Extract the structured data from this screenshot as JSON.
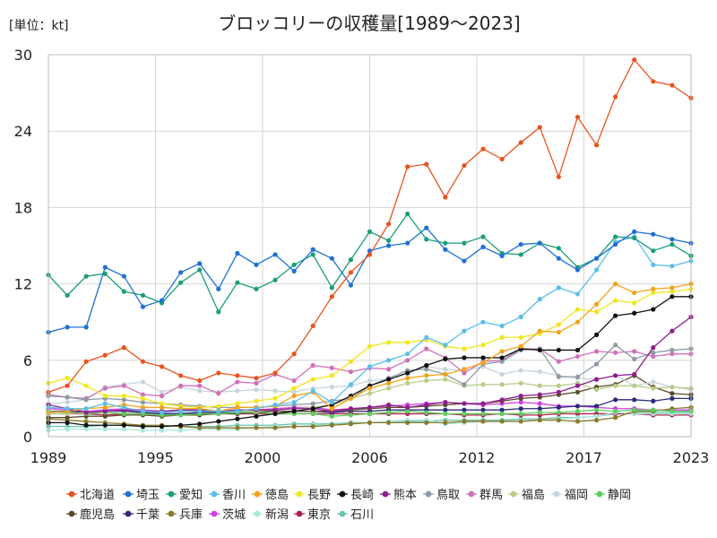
{
  "chart_data": {
    "type": "line",
    "title": "ブロッコリーの収穫量[1989〜2023]",
    "unit_label": "[単位：kt]",
    "xlim": [
      1989,
      2023
    ],
    "ylim": [
      0,
      30
    ],
    "y_ticks": [
      0,
      6,
      12,
      18,
      24,
      30
    ],
    "y_tick_labels": [
      "0",
      "6",
      "12",
      "18",
      "24",
      "30"
    ],
    "x_tick_labels": [
      "1989",
      "1995",
      "2000",
      "2006",
      "2012",
      "2017",
      "2023"
    ],
    "grid": true,
    "legend_position": "bottom",
    "x": [
      1989,
      1990,
      1991,
      1992,
      1993,
      1994,
      1995,
      1996,
      1997,
      1998,
      1999,
      2000,
      2001,
      2002,
      2003,
      2004,
      2005,
      2006,
      2007,
      2008,
      2009,
      2010,
      2011,
      2012,
      2013,
      2014,
      2015,
      2016,
      2017,
      2018,
      2019,
      2020,
      2021,
      2022,
      2023
    ],
    "series": [
      {
        "name": "北海道",
        "color": "#e8531f",
        "values": [
          3.5,
          4.0,
          5.9,
          6.4,
          7.0,
          5.9,
          5.5,
          4.8,
          4.4,
          5.0,
          4.8,
          4.6,
          5.0,
          6.5,
          8.7,
          11.0,
          12.9,
          14.3,
          16.7,
          21.2,
          21.4,
          18.8,
          21.3,
          22.6,
          21.8,
          23.1,
          24.3,
          20.4,
          25.1,
          22.9,
          26.7,
          29.6,
          27.9,
          27.6,
          26.6
        ]
      },
      {
        "name": "埼玉",
        "color": "#1f6fd6",
        "values": [
          8.2,
          8.6,
          8.6,
          13.3,
          12.6,
          10.2,
          10.7,
          12.9,
          13.6,
          11.6,
          14.4,
          13.5,
          14.3,
          13.0,
          14.7,
          14.0,
          11.9,
          14.6,
          15.0,
          15.2,
          16.4,
          14.7,
          13.8,
          14.9,
          14.2,
          15.1,
          15.2,
          14.0,
          13.1,
          14.0,
          15.1,
          16.1,
          15.9,
          15.5,
          15.2
        ]
      },
      {
        "name": "愛知",
        "color": "#1a9e77",
        "values": [
          12.7,
          11.1,
          12.6,
          12.8,
          11.4,
          11.1,
          10.5,
          12.1,
          13.1,
          9.8,
          12.1,
          11.6,
          12.3,
          13.5,
          14.3,
          11.7,
          13.9,
          16.1,
          15.4,
          17.5,
          15.5,
          15.2,
          15.2,
          15.7,
          14.4,
          14.3,
          15.2,
          14.8,
          13.3,
          14.0,
          15.7,
          15.6,
          14.6,
          15.1,
          14.2
        ]
      },
      {
        "name": "香川",
        "color": "#5bbfe8",
        "values": [
          2.3,
          2.2,
          2.2,
          2.6,
          2.3,
          2.0,
          1.9,
          2.0,
          2.0,
          2.0,
          2.0,
          2.2,
          2.5,
          2.7,
          3.6,
          2.7,
          4.1,
          5.5,
          6.0,
          6.5,
          7.8,
          7.2,
          8.3,
          9.0,
          8.7,
          9.4,
          10.8,
          11.7,
          11.2,
          13.1,
          15.3,
          15.7,
          13.5,
          13.4,
          13.8
        ]
      },
      {
        "name": "徳島",
        "color": "#f2a31b",
        "values": [
          1.9,
          2.0,
          2.2,
          2.3,
          2.5,
          2.3,
          2.3,
          2.2,
          2.2,
          2.0,
          2.3,
          2.3,
          2.4,
          3.2,
          3.5,
          2.2,
          3.0,
          3.8,
          4.2,
          4.6,
          4.8,
          4.9,
          5.3,
          5.8,
          6.7,
          7.1,
          8.3,
          8.2,
          9.0,
          10.4,
          12.0,
          11.3,
          11.6,
          11.7,
          12.0
        ]
      },
      {
        "name": "長野",
        "color": "#f3e51c",
        "values": [
          4.2,
          4.6,
          4.0,
          3.2,
          3.2,
          3.0,
          2.6,
          2.4,
          2.3,
          2.4,
          2.6,
          2.8,
          3.0,
          3.8,
          4.5,
          4.8,
          5.9,
          7.1,
          7.4,
          7.4,
          7.6,
          7.1,
          6.9,
          7.2,
          7.8,
          7.8,
          8.1,
          8.8,
          10.0,
          9.8,
          10.7,
          10.5,
          11.3,
          11.4,
          11.6
        ]
      },
      {
        "name": "長崎",
        "color": "#111111",
        "values": [
          1.1,
          1.1,
          0.9,
          0.9,
          0.9,
          0.8,
          0.8,
          0.9,
          1.0,
          1.2,
          1.4,
          1.6,
          1.8,
          2.0,
          2.2,
          2.5,
          3.2,
          4.0,
          4.5,
          5.0,
          5.6,
          6.1,
          6.2,
          6.2,
          6.2,
          6.9,
          6.8,
          6.8,
          6.8,
          8.0,
          9.5,
          9.7,
          10.0,
          11.0,
          11.0
        ]
      },
      {
        "name": "熊本",
        "color": "#8e1f8e",
        "values": [
          2.5,
          2.2,
          1.9,
          2.0,
          2.1,
          2.0,
          2.0,
          2.1,
          2.1,
          2.0,
          2.1,
          2.1,
          2.1,
          2.2,
          2.2,
          2.0,
          2.2,
          2.3,
          2.5,
          2.3,
          2.5,
          2.7,
          2.6,
          2.6,
          2.9,
          3.2,
          3.3,
          3.5,
          4.0,
          4.5,
          4.8,
          4.9,
          7.0,
          8.3,
          9.4
        ]
      },
      {
        "name": "鳥取",
        "color": "#8e9aa6",
        "values": [
          3.2,
          3.1,
          2.9,
          3.0,
          2.9,
          2.7,
          2.6,
          2.5,
          2.4,
          2.3,
          2.3,
          2.3,
          2.4,
          2.5,
          2.6,
          2.8,
          3.0,
          4.0,
          4.6,
          5.2,
          5.3,
          4.9,
          4.1,
          5.7,
          5.9,
          6.8,
          6.9,
          4.7,
          4.7,
          5.7,
          7.2,
          6.1,
          6.6,
          6.8,
          6.9
        ]
      },
      {
        "name": "群馬",
        "color": "#d070b8",
        "values": [
          3.3,
          3.1,
          3.0,
          3.8,
          4.0,
          3.3,
          3.2,
          4.0,
          4.0,
          3.4,
          4.3,
          4.2,
          4.9,
          4.4,
          5.6,
          5.4,
          5.1,
          5.4,
          5.3,
          6.0,
          6.9,
          6.2,
          5.0,
          5.9,
          6.0,
          6.9,
          6.9,
          5.9,
          6.3,
          6.7,
          6.6,
          6.7,
          6.3,
          6.5,
          6.5
        ]
      },
      {
        "name": "福島",
        "color": "#b8cc8a",
        "values": [
          1.8,
          1.8,
          1.9,
          2.0,
          2.1,
          2.0,
          2.0,
          2.1,
          2.1,
          2.0,
          2.0,
          2.0,
          2.1,
          2.2,
          2.3,
          2.5,
          3.0,
          3.4,
          3.8,
          4.2,
          4.4,
          4.5,
          4.0,
          4.1,
          4.1,
          4.2,
          4.0,
          4.0,
          4.2,
          3.7,
          4.0,
          4.0,
          3.8,
          3.9,
          3.8
        ]
      },
      {
        "name": "福岡",
        "color": "#c8d4dc",
        "values": [
          2.6,
          2.7,
          2.9,
          3.9,
          4.1,
          4.3,
          3.5,
          3.9,
          3.6,
          3.5,
          3.6,
          3.7,
          3.6,
          3.5,
          3.8,
          3.9,
          4.0,
          4.4,
          4.5,
          5.0,
          5.5,
          5.3,
          5.2,
          5.5,
          4.9,
          5.2,
          5.1,
          4.8,
          4.6,
          4.5,
          4.8,
          4.0,
          4.3,
          3.9,
          3.7
        ]
      },
      {
        "name": "静岡",
        "color": "#5ccf5c",
        "values": [
          2.0,
          1.9,
          1.8,
          1.9,
          1.8,
          1.8,
          1.7,
          1.7,
          1.8,
          1.8,
          1.9,
          1.9,
          1.8,
          1.8,
          1.8,
          1.6,
          1.7,
          1.8,
          1.9,
          2.0,
          1.9,
          1.8,
          1.8,
          1.8,
          1.8,
          1.8,
          1.9,
          1.9,
          2.0,
          2.1,
          2.0,
          2.1,
          2.1,
          2.0,
          2.0
        ]
      },
      {
        "name": "鹿児島",
        "color": "#5a4a2a",
        "values": [
          1.5,
          1.5,
          1.6,
          1.6,
          1.7,
          1.7,
          1.6,
          1.7,
          1.7,
          1.8,
          1.8,
          1.9,
          2.0,
          2.0,
          2.0,
          2.0,
          2.1,
          2.2,
          2.3,
          2.3,
          2.4,
          2.5,
          2.6,
          2.6,
          2.8,
          3.0,
          3.1,
          3.3,
          3.5,
          3.9,
          4.1,
          4.8,
          3.9,
          3.4,
          3.3
        ]
      },
      {
        "name": "千葉",
        "color": "#2a2a7a",
        "values": [
          2.0,
          2.0,
          1.9,
          2.0,
          2.0,
          1.9,
          1.8,
          1.8,
          1.9,
          1.9,
          2.0,
          2.0,
          2.0,
          2.0,
          2.0,
          1.9,
          2.0,
          2.0,
          2.1,
          2.1,
          2.1,
          2.1,
          2.1,
          2.1,
          2.1,
          2.2,
          2.2,
          2.3,
          2.4,
          2.4,
          2.9,
          2.9,
          2.8,
          3.0,
          3.0
        ]
      },
      {
        "name": "兵庫",
        "color": "#8a7a2a",
        "values": [
          1.4,
          1.3,
          1.2,
          1.1,
          1.0,
          0.9,
          0.9,
          0.8,
          0.7,
          0.7,
          0.7,
          0.7,
          0.7,
          0.8,
          0.8,
          0.9,
          1.0,
          1.1,
          1.1,
          1.1,
          1.1,
          1.1,
          1.2,
          1.2,
          1.2,
          1.2,
          1.3,
          1.3,
          1.2,
          1.3,
          1.5,
          2.0,
          2.0,
          2.2,
          2.3
        ]
      },
      {
        "name": "茨城",
        "color": "#d040e0",
        "values": [
          2.2,
          2.1,
          2.0,
          2.1,
          2.2,
          2.1,
          2.0,
          2.0,
          2.0,
          1.9,
          2.0,
          2.1,
          2.2,
          2.3,
          2.3,
          2.1,
          2.2,
          2.3,
          2.4,
          2.5,
          2.6,
          2.7,
          2.6,
          2.5,
          2.6,
          2.7,
          2.6,
          2.4,
          2.4,
          2.3,
          2.2,
          2.2,
          2.1,
          2.1,
          2.1
        ]
      },
      {
        "name": "新潟",
        "color": "#a8e8dc",
        "values": [
          0.5,
          0.6,
          0.6,
          0.6,
          0.6,
          0.5,
          0.5,
          0.5,
          0.6,
          0.6,
          0.6,
          0.7,
          0.8,
          0.8,
          0.9,
          0.9,
          1.0,
          1.1,
          1.2,
          1.3,
          1.3,
          1.0,
          1.1,
          1.2,
          1.2,
          1.3,
          1.3,
          1.4,
          1.5,
          1.6,
          1.9,
          1.8,
          1.8,
          1.8,
          1.8
        ]
      },
      {
        "name": "東京",
        "color": "#b0204a",
        "values": [
          1.8,
          1.8,
          1.8,
          1.7,
          1.8,
          1.8,
          1.8,
          1.8,
          1.8,
          1.8,
          1.8,
          1.8,
          1.8,
          1.8,
          1.8,
          1.8,
          1.8,
          1.8,
          1.8,
          1.8,
          1.8,
          1.8,
          1.7,
          1.7,
          1.8,
          1.7,
          1.7,
          1.8,
          1.8,
          1.8,
          1.8,
          1.8,
          1.7,
          1.7,
          1.7
        ]
      },
      {
        "name": "石川",
        "color": "#6cc4b0",
        "values": [
          0.8,
          0.8,
          0.8,
          0.9,
          0.9,
          0.9,
          0.8,
          0.8,
          0.8,
          0.8,
          0.9,
          0.9,
          0.9,
          1.0,
          1.0,
          1.0,
          1.1,
          1.1,
          1.2,
          1.2,
          1.2,
          1.3,
          1.3,
          1.3,
          1.3,
          1.4,
          1.4,
          1.5,
          1.5,
          1.6,
          1.8,
          1.9,
          1.9,
          1.9,
          1.9
        ]
      }
    ]
  }
}
